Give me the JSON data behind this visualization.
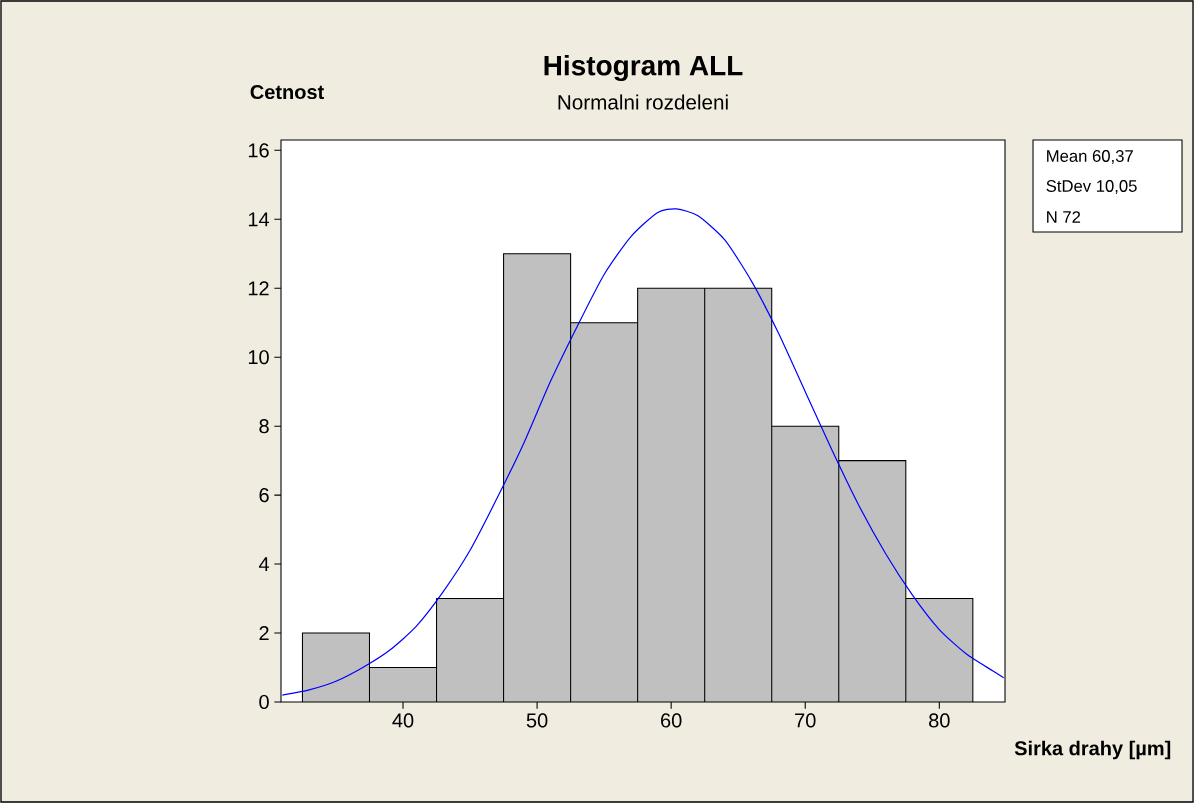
{
  "chart_data": {
    "type": "histogram",
    "title": "Histogram ALL",
    "subtitle": "Normalni rozdeleni",
    "xlabel": "Sirka drahy [µm]",
    "ylabel": "Cetnost",
    "annotations": [
      "Mean 60,37",
      "StDev 10,05",
      "N 72"
    ],
    "series": [
      {
        "color": "#c0c0c0",
        "bins": [
          32.5,
          37.5,
          42.5,
          47.5,
          52.5,
          57.5,
          62.5,
          67.5,
          72.5,
          77.5,
          82.5
        ],
        "values": [
          2,
          1,
          3,
          13,
          11,
          12,
          12,
          8,
          7,
          3
        ]
      },
      {
        "type": "line",
        "color": "#0000ff",
        "x": [
          31,
          33,
          35,
          37,
          39,
          41,
          43,
          45,
          47,
          49,
          51,
          53,
          55,
          57,
          59,
          60.4,
          62,
          64,
          66,
          68,
          70,
          72,
          74,
          76,
          78,
          80,
          82,
          84,
          84.8
        ],
        "values": [
          0.2,
          0.35,
          0.6,
          1.0,
          1.5,
          2.2,
          3.2,
          4.4,
          5.9,
          7.5,
          9.3,
          10.9,
          12.4,
          13.5,
          14.2,
          14.3,
          14.1,
          13.4,
          12.2,
          10.7,
          9.0,
          7.3,
          5.7,
          4.3,
          3.1,
          2.1,
          1.4,
          0.9,
          0.7
        ]
      }
    ],
    "xlim": [
      30.9,
      84.9
    ],
    "ylim": [
      0,
      16.3
    ],
    "xticks": [
      40,
      50,
      60,
      70,
      80
    ],
    "yticks": [
      0,
      2,
      4,
      6,
      8,
      10,
      12,
      14,
      16
    ],
    "grid": false
  }
}
